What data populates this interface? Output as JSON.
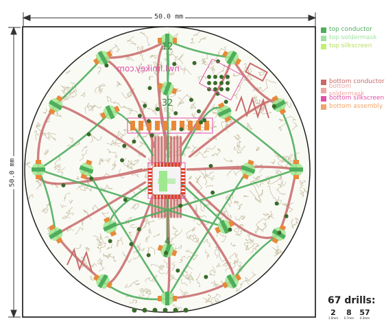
{
  "dimensions": {
    "width_label": "50.0 mm",
    "height_label": "50.0 mm"
  },
  "board": {
    "silkscreen_labels": {
      "top_number_1": "12",
      "top_number_2": "32",
      "top_number_3": "4",
      "mirrored_text": "nwl.lmikey.com"
    }
  },
  "legend": {
    "top": [
      {
        "label": "top conductor",
        "color": "#4fae5e"
      },
      {
        "label": "top soldermask",
        "color": "#9fe3a0"
      },
      {
        "label": "top silkscreen",
        "color": "#c2f06a"
      }
    ],
    "bottom": [
      {
        "label": "bottom conductor",
        "color": "#c86a6a"
      },
      {
        "label": "bottom soldermask",
        "color": "#f0a6a6"
      },
      {
        "label": "bottom silkscreen",
        "color": "#e04fa8"
      },
      {
        "label": "bottom assembly",
        "color": "#f2a46a"
      }
    ]
  },
  "drills": {
    "title": "67 drills:",
    "stats": [
      {
        "count": "2",
        "size": "1.0mm"
      },
      {
        "count": "8",
        "size": "0.7mm"
      },
      {
        "count": "57",
        "size": "0.3mm"
      }
    ]
  },
  "colors": {
    "board_outline": "#000000",
    "copper_top": "#4fae5e",
    "copper_bottom": "#c86a6a",
    "silk_mesh": "#c9c2a8",
    "pad_green": "#9fe890",
    "pad_orange": "#e8893a",
    "via": "#3a6a2a"
  }
}
